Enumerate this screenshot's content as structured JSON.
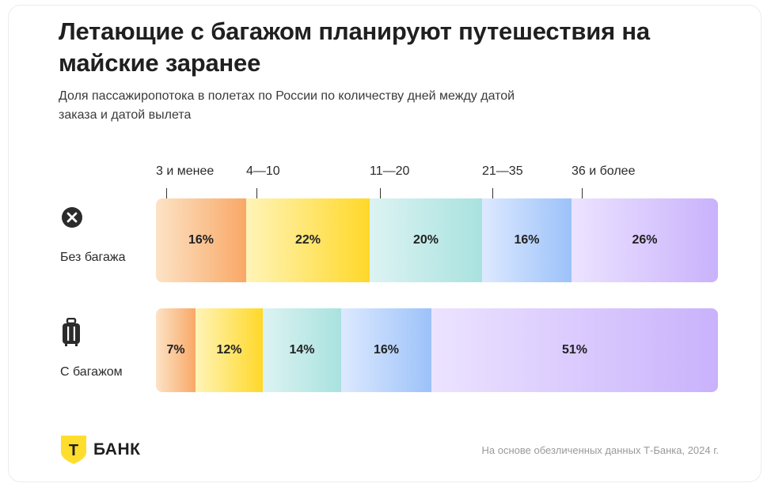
{
  "title": "Летающие с багажом планируют путешествия на майские заранее",
  "subtitle": "Доля пассажиропотока в полетах по России по количеству дней между датой заказа и датой вылета",
  "source": "На основе обезличенных данных Т-Банка, 2024 г.",
  "brand": {
    "logo_letter": "Т",
    "name": "БАНК",
    "logo_color": "#FFDD2D"
  },
  "icons": {
    "row0": "close-circle-icon",
    "row1": "suitcase-icon"
  },
  "chart_data": {
    "type": "bar",
    "orientation": "horizontal",
    "stacked": "percent",
    "categories": [
      "3 и менее",
      "4—10",
      "11—20",
      "21—35",
      "36 и более"
    ],
    "series": [
      {
        "name": "Без багажа",
        "values": [
          16,
          22,
          20,
          16,
          26
        ]
      },
      {
        "name": "С багажом",
        "values": [
          7,
          12,
          14,
          16,
          51
        ]
      }
    ],
    "value_suffix": "%",
    "colors": [
      [
        "#FCE3C6",
        "#F9A866"
      ],
      [
        "#FFF4B8",
        "#FFD829"
      ],
      [
        "#DCF3F2",
        "#A9E2DF"
      ],
      [
        "#DDE9FF",
        "#9CC2F9"
      ],
      [
        "#ECE3FF",
        "#C9B2FC"
      ]
    ]
  }
}
